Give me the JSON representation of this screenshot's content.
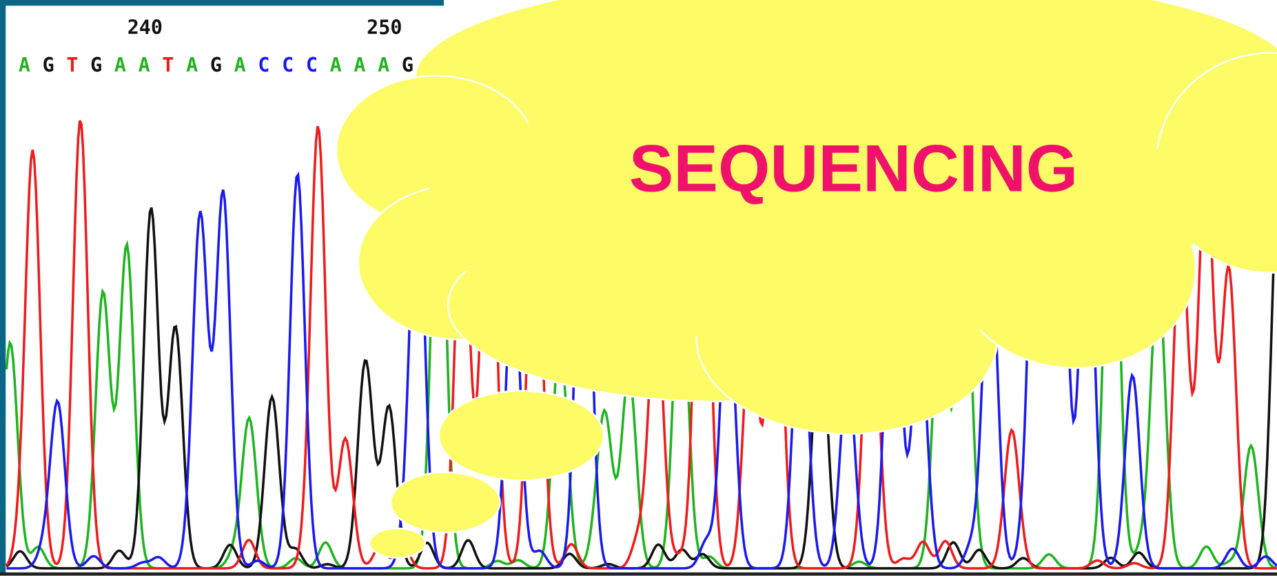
{
  "position_labels": [
    "240",
    "250"
  ],
  "bases": [
    "A",
    "G",
    "T",
    "G",
    "A",
    "A",
    "T",
    "A",
    "G",
    "A",
    "C",
    "C",
    "C",
    "A",
    "A",
    "A",
    "G"
  ],
  "base_colors": {
    "A": "#1fb41f",
    "G": "#111111",
    "T": "#ee1c1c",
    "C": "#1a1aee"
  },
  "title": "SEQUENCING"
}
